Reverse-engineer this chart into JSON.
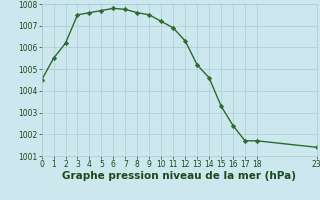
{
  "x": [
    0,
    1,
    2,
    3,
    4,
    5,
    6,
    7,
    8,
    9,
    10,
    11,
    12,
    13,
    14,
    15,
    16,
    17,
    18,
    23
  ],
  "y": [
    1004.5,
    1005.5,
    1006.2,
    1007.5,
    1007.6,
    1007.7,
    1007.8,
    1007.75,
    1007.6,
    1007.5,
    1007.2,
    1006.9,
    1006.3,
    1005.2,
    1004.6,
    1003.3,
    1002.4,
    1001.7,
    1001.7,
    1001.4
  ],
  "line_color": "#2d6a2d",
  "marker": "D",
  "marker_size": 2.2,
  "bg_color": "#cce8ee",
  "grid_color": "#aaccd4",
  "xlabel": "Graphe pression niveau de la mer (hPa)",
  "xlabel_fontsize": 7.5,
  "xlabel_color": "#1a4a1a",
  "xlabel_fontweight": "bold",
  "ylim": [
    1001,
    1008
  ],
  "xlim": [
    0,
    23
  ],
  "yticks": [
    1001,
    1002,
    1003,
    1004,
    1005,
    1006,
    1007,
    1008
  ],
  "xticks": [
    0,
    1,
    2,
    3,
    4,
    5,
    6,
    7,
    8,
    9,
    10,
    11,
    12,
    13,
    14,
    15,
    16,
    17,
    18,
    23
  ],
  "tick_fontsize": 5.5,
  "tick_color": "#1a4a1a",
  "linewidth": 1.0
}
